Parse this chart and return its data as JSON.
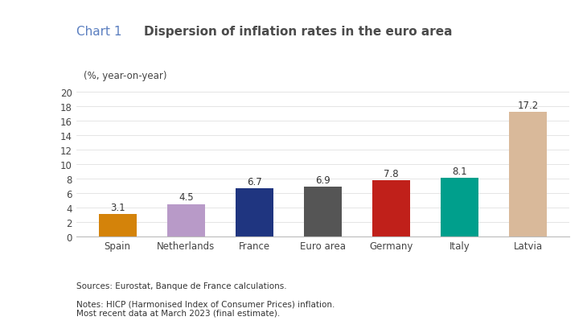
{
  "categories": [
    "Spain",
    "Netherlands",
    "France",
    "Euro area",
    "Germany",
    "Italy",
    "Latvia"
  ],
  "values": [
    3.1,
    4.5,
    6.7,
    6.9,
    7.8,
    8.1,
    17.2
  ],
  "bar_colors": [
    "#D4830A",
    "#B89AC8",
    "#1F3580",
    "#555555",
    "#C0201A",
    "#009F8C",
    "#D9B99A"
  ],
  "title_prefix": "Chart 1",
  "title_text": "Dispersion of inflation rates in the euro area",
  "title_prefix_color": "#5B7FC0",
  "title_text_color": "#4B4B4B",
  "ylabel": "(%, year-on-year)",
  "ylim": [
    0,
    20
  ],
  "yticks": [
    0,
    2,
    4,
    6,
    8,
    10,
    12,
    14,
    16,
    18,
    20
  ],
  "source_text": "Sources: Eurostat, Banque de France calculations.",
  "notes_text": "Notes: HICP (Harmonised Index of Consumer Prices) inflation.\nMost recent data at March 2023 (final estimate).",
  "background_color": "#FFFFFF",
  "label_fontsize": 8.5,
  "ylabel_fontsize": 8.5,
  "tick_fontsize": 8.5,
  "title_prefix_fontsize": 11,
  "title_fontsize": 11,
  "footer_fontsize": 7.5
}
